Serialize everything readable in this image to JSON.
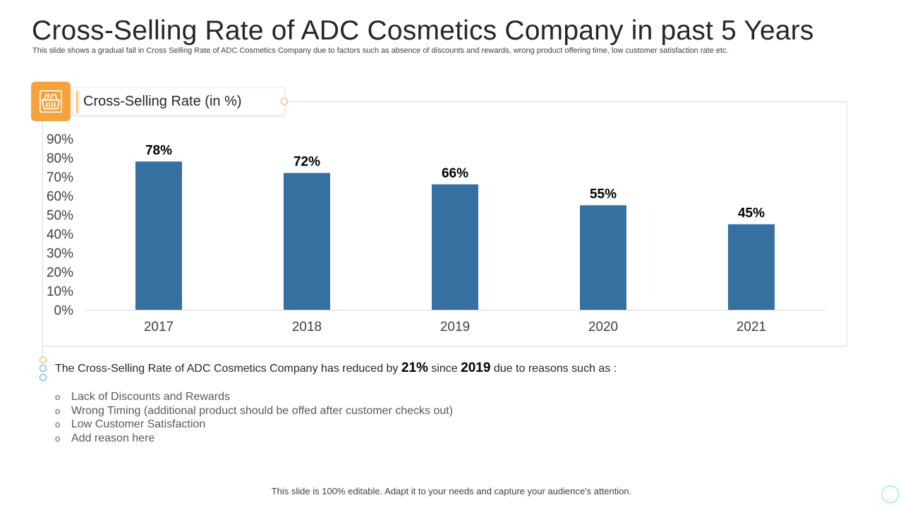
{
  "header": {
    "title": "Cross-Selling Rate of ADC Cosmetics Company in past 5 Years",
    "subtitle": "This slide shows a  gradual fall in Cross Selling Rate of ADC Cosmetics Company  due to factors such as absence of discounts and rewards, wrong product offering time, low customer satisfaction rate etc."
  },
  "icon": {
    "name": "shopping-basket-icon"
  },
  "chart_data": {
    "type": "bar",
    "title": "Cross-Selling Rate (in %)",
    "categories": [
      "2017",
      "2018",
      "2019",
      "2020",
      "2021"
    ],
    "values": [
      78,
      72,
      66,
      55,
      45
    ],
    "data_labels": [
      "78%",
      "72%",
      "66%",
      "55%",
      "45%"
    ],
    "y_ticks": [
      "0%",
      "10%",
      "20%",
      "30%",
      "40%",
      "50%",
      "60%",
      "70%",
      "80%",
      "90%"
    ],
    "ylim": [
      0,
      90
    ],
    "xlabel": "",
    "ylabel": "",
    "grid": false,
    "bar_color": "#3670a0"
  },
  "summary": {
    "prefix": "The Cross-Selling Rate of ADC Cosmetics Company has reduced by ",
    "amount": "21%",
    "middle": " since ",
    "year": "2019",
    "suffix": " due to reasons such as :"
  },
  "reasons": {
    "bullet": "o",
    "items": [
      "Lack of Discounts and Rewards",
      "Wrong Timing (additional product should be offed after customer checks out)",
      "Low Customer Satisfaction",
      "Add reason here"
    ]
  },
  "footer": {
    "text": "This slide is 100% editable. Adapt it to your needs and capture your audience's attention."
  },
  "colors": {
    "accent_orange": "#f7a23b",
    "accent_teal": "#3aa3c8",
    "bar": "#3670a0"
  }
}
